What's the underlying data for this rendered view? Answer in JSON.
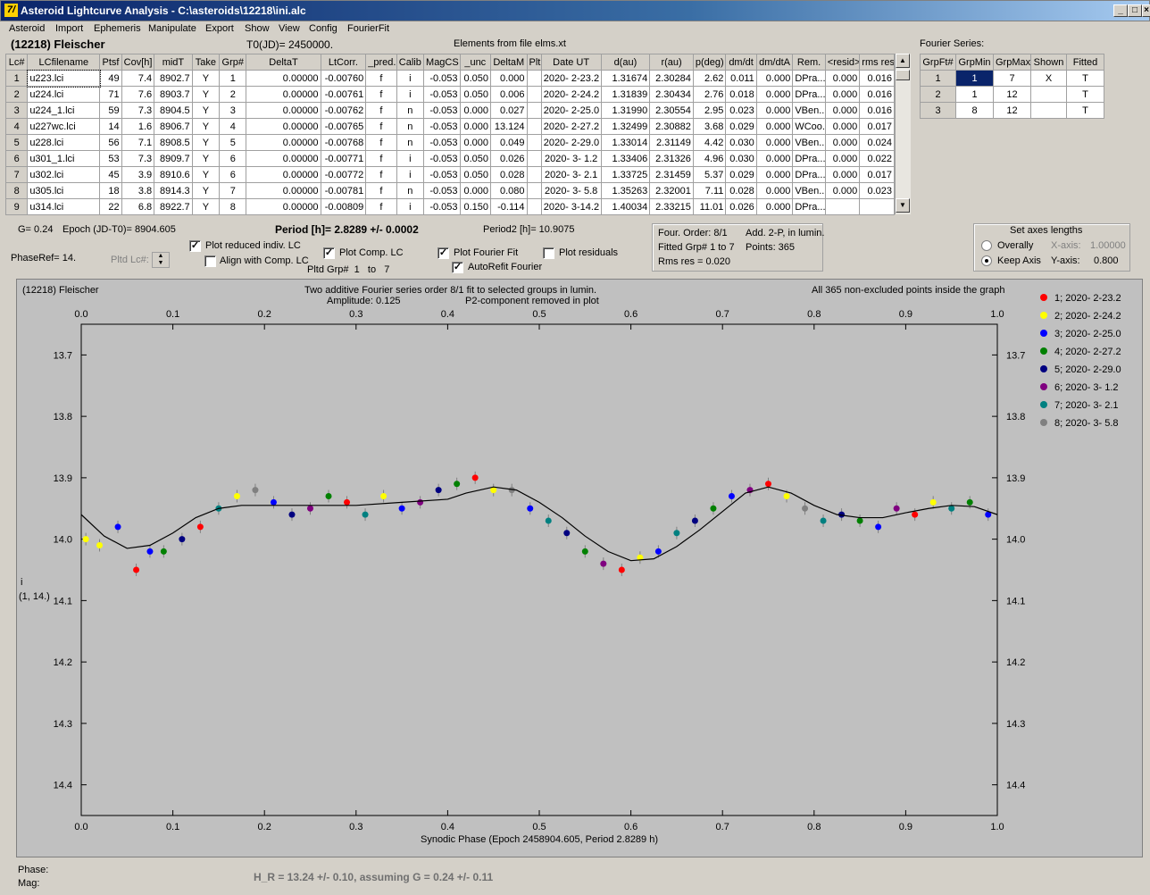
{
  "window": {
    "title": "Asteroid Lightcurve Analysis - C:\\asteroids\\12218\\ini.alc",
    "icon_text": "7/"
  },
  "menu": [
    "Asteroid",
    "Import",
    "Ephemeris",
    "Manipulate",
    "Export",
    "Show",
    "View",
    "Config",
    "FourierFit"
  ],
  "header": {
    "asteroid": "(12218) Fleischer",
    "t0": "T0(JD)= 2450000.",
    "elements": "Elements from file elms.xt",
    "fourier_series_label": "Fourier Series:"
  },
  "lc_table": {
    "columns": [
      "Lc#",
      "LCfilename",
      "Ptsf",
      "Cov[h]",
      "midT",
      "Take",
      "Grp#",
      "DeltaT",
      "LtCorr.",
      "_pred.",
      "Calib",
      "MagCS",
      "_unc",
      "DeltaM",
      "Plt",
      "Date UT",
      "d(au)",
      "r(au)",
      "p(deg)",
      "dm/dt",
      "dm/dtA",
      "Rem.",
      "<resid>",
      "rms res"
    ],
    "rows": [
      [
        "1",
        "u223.lci",
        "49",
        "7.4",
        "8902.7",
        "Y",
        "1",
        "0.00000",
        "-0.00760",
        "f",
        "i",
        "-0.053",
        "0.050",
        "0.000",
        "",
        "2020- 2-23.2",
        "1.31674",
        "2.30284",
        "2.62",
        "0.011",
        "0.000",
        "DPra...",
        "0.000",
        "0.016"
      ],
      [
        "2",
        "u224.lci",
        "71",
        "7.6",
        "8903.7",
        "Y",
        "2",
        "0.00000",
        "-0.00761",
        "f",
        "i",
        "-0.053",
        "0.050",
        "0.006",
        "",
        "2020- 2-24.2",
        "1.31839",
        "2.30434",
        "2.76",
        "0.018",
        "0.000",
        "DPra...",
        "0.000",
        "0.016"
      ],
      [
        "3",
        "u224_1.lci",
        "59",
        "7.3",
        "8904.5",
        "Y",
        "3",
        "0.00000",
        "-0.00762",
        "f",
        "n",
        "-0.053",
        "0.000",
        "0.027",
        "",
        "2020- 2-25.0",
        "1.31990",
        "2.30554",
        "2.95",
        "0.023",
        "0.000",
        "VBen...",
        "0.000",
        "0.016"
      ],
      [
        "4",
        "u227wc.lci",
        "14",
        "1.6",
        "8906.7",
        "Y",
        "4",
        "0.00000",
        "-0.00765",
        "f",
        "n",
        "-0.053",
        "0.000",
        "13.124",
        "",
        "2020- 2-27.2",
        "1.32499",
        "2.30882",
        "3.68",
        "0.029",
        "0.000",
        "WCoo...",
        "0.000",
        "0.017"
      ],
      [
        "5",
        "u228.lci",
        "56",
        "7.1",
        "8908.5",
        "Y",
        "5",
        "0.00000",
        "-0.00768",
        "f",
        "n",
        "-0.053",
        "0.000",
        "0.049",
        "",
        "2020- 2-29.0",
        "1.33014",
        "2.31149",
        "4.42",
        "0.030",
        "0.000",
        "VBen...",
        "0.000",
        "0.024"
      ],
      [
        "6",
        "u301_1.lci",
        "53",
        "7.3",
        "8909.7",
        "Y",
        "6",
        "0.00000",
        "-0.00771",
        "f",
        "i",
        "-0.053",
        "0.050",
        "0.026",
        "",
        "2020- 3- 1.2",
        "1.33406",
        "2.31326",
        "4.96",
        "0.030",
        "0.000",
        "DPra...",
        "0.000",
        "0.022"
      ],
      [
        "7",
        "u302.lci",
        "45",
        "3.9",
        "8910.6",
        "Y",
        "6",
        "0.00000",
        "-0.00772",
        "f",
        "i",
        "-0.053",
        "0.050",
        "0.028",
        "",
        "2020- 3- 2.1",
        "1.33725",
        "2.31459",
        "5.37",
        "0.029",
        "0.000",
        "DPra...",
        "0.000",
        "0.017"
      ],
      [
        "8",
        "u305.lci",
        "18",
        "3.8",
        "8914.3",
        "Y",
        "7",
        "0.00000",
        "-0.00781",
        "f",
        "n",
        "-0.053",
        "0.000",
        "0.080",
        "",
        "2020- 3- 5.8",
        "1.35263",
        "2.32001",
        "7.11",
        "0.028",
        "0.000",
        "VBen...",
        "0.000",
        "0.023"
      ],
      [
        "9",
        "u314.lci",
        "22",
        "6.8",
        "8922.7",
        "Y",
        "8",
        "0.00000",
        "-0.00809",
        "f",
        "i",
        "-0.053",
        "0.150",
        "-0.114",
        "",
        "2020- 3-14.2",
        "1.40034",
        "2.33215",
        "11.01",
        "0.026",
        "0.000",
        "DPra...",
        "",
        ""
      ]
    ]
  },
  "fourier_table": {
    "columns": [
      "GrpFt#",
      "GrpMin",
      "GrpMax",
      "Shown",
      "Fitted"
    ],
    "rows": [
      [
        "1",
        "1",
        "7",
        "X",
        "T"
      ],
      [
        "2",
        "1",
        "12",
        "",
        "T"
      ],
      [
        "3",
        "8",
        "12",
        "",
        "T"
      ]
    ]
  },
  "controls": {
    "g": "G= 0.24",
    "epoch": "Epoch (JD-T0)= 8904.605",
    "period": "Period [h]= 2.8289 +/- 0.0002",
    "period2": "Period2 [h]= 10.9075",
    "phaseref": "PhaseRef= 14.",
    "pltd_lc": "Pltd Lc#:",
    "plot_reduced": "Plot reduced indiv. LC",
    "align_comp": "Align with Comp. LC",
    "plot_comp": "Plot Comp. LC",
    "pltd_grp": "Pltd Grp#",
    "pltd_grp_from": "1",
    "pltd_grp_to_label": "to",
    "pltd_grp_to": "7",
    "plot_fourier": "Plot Fourier Fit",
    "autorefit": "AutoRefit Fourier",
    "plot_residuals": "Plot residuals",
    "plot_reduced_checked": true,
    "align_comp_checked": false,
    "plot_comp_checked": true,
    "plot_fourier_checked": true,
    "autorefit_checked": true,
    "plot_residuals_checked": false
  },
  "fourier_info": {
    "order": "Four. Order:  8/1",
    "add": "Add. 2-P, in lumin.",
    "fitted": "Fitted Grp# 1 to 7",
    "points": "Points: 365",
    "rms": "Rms res     = 0.020"
  },
  "axes_box": {
    "title": "Set axes lengths",
    "overall": "Overally",
    "keep": "Keep Axis",
    "xaxis_label": "X-axis:",
    "xaxis_value": "1.00000",
    "yaxis_label": "Y-axis:",
    "yaxis_value": "0.800",
    "selected": "keep"
  },
  "plot_header": {
    "name": "(12218) Fleischer",
    "line1": "Two additive Fourier series order 8/1 fit to selected groups in lumin.",
    "amplitude": "Amplitude: 0.125",
    "p2": "P2-component removed in plot",
    "points_note": "All 365 non-excluded points inside the graph"
  },
  "status": {
    "phase": "Phase:",
    "mag": "Mag:",
    "hr": "H_R = 13.24 +/- 0.10, assuming G = 0.24 +/- 0.11"
  },
  "chart_data": {
    "type": "scatter",
    "xlabel": "Synodic Phase (Epoch 2458904.605, Period 2.8289 h)",
    "ylabel": "i",
    "ylabel2": "(1, 14.)",
    "xlim": [
      0.0,
      1.0
    ],
    "ylim": [
      14.45,
      13.65
    ],
    "x_ticks": [
      "0.0",
      "0.1",
      "0.2",
      "0.3",
      "0.4",
      "0.5",
      "0.6",
      "0.7",
      "0.8",
      "0.9",
      "1.0"
    ],
    "y_ticks": [
      "13.7",
      "13.8",
      "13.9",
      "14.0",
      "14.1",
      "14.2",
      "14.3",
      "14.4"
    ],
    "y_tick_values": [
      13.7,
      13.8,
      13.9,
      14.0,
      14.1,
      14.2,
      14.3,
      14.4
    ],
    "fit_curve": {
      "x": [
        0.0,
        0.025,
        0.05,
        0.075,
        0.1,
        0.125,
        0.15,
        0.175,
        0.2,
        0.25,
        0.3,
        0.35,
        0.4,
        0.42,
        0.45,
        0.475,
        0.5,
        0.525,
        0.55,
        0.575,
        0.6,
        0.625,
        0.65,
        0.675,
        0.7,
        0.725,
        0.75,
        0.775,
        0.8,
        0.825,
        0.85,
        0.875,
        0.9,
        0.925,
        0.95,
        0.975,
        1.0
      ],
      "y": [
        13.96,
        13.995,
        14.015,
        14.01,
        13.99,
        13.965,
        13.95,
        13.945,
        13.945,
        13.945,
        13.945,
        13.94,
        13.935,
        13.925,
        13.915,
        13.92,
        13.94,
        13.965,
        13.995,
        14.02,
        14.035,
        14.032,
        14.012,
        13.985,
        13.955,
        13.925,
        13.915,
        13.925,
        13.945,
        13.96,
        13.965,
        13.965,
        13.957,
        13.95,
        13.945,
        13.947,
        13.96
      ]
    },
    "series": [
      {
        "name": "1; 2020- 2-23.2",
        "color": "#ff0000"
      },
      {
        "name": "2; 2020- 2-24.2",
        "color": "#ffff00"
      },
      {
        "name": "3; 2020- 2-25.0",
        "color": "#0000ff"
      },
      {
        "name": "4; 2020- 2-27.2",
        "color": "#008000"
      },
      {
        "name": "5; 2020- 2-29.0",
        "color": "#000080"
      },
      {
        "name": "6; 2020- 3- 1.2",
        "color": "#800080"
      },
      {
        "name": "7; 2020- 3- 2.1",
        "color": "#008080"
      },
      {
        "name": "8; 2020- 3- 5.8",
        "color": "#808080"
      }
    ],
    "points": [
      [
        0.005,
        14.0,
        1
      ],
      [
        0.02,
        14.01,
        1
      ],
      [
        0.04,
        13.98,
        2
      ],
      [
        0.06,
        14.05,
        0
      ],
      [
        0.075,
        14.02,
        2
      ],
      [
        0.09,
        14.02,
        3
      ],
      [
        0.11,
        14.0,
        4
      ],
      [
        0.13,
        13.98,
        0
      ],
      [
        0.15,
        13.95,
        6
      ],
      [
        0.17,
        13.93,
        1
      ],
      [
        0.19,
        13.92,
        7
      ],
      [
        0.21,
        13.94,
        2
      ],
      [
        0.23,
        13.96,
        4
      ],
      [
        0.25,
        13.95,
        5
      ],
      [
        0.27,
        13.93,
        3
      ],
      [
        0.29,
        13.94,
        0
      ],
      [
        0.31,
        13.96,
        6
      ],
      [
        0.33,
        13.93,
        1
      ],
      [
        0.35,
        13.95,
        2
      ],
      [
        0.37,
        13.94,
        5
      ],
      [
        0.39,
        13.92,
        4
      ],
      [
        0.41,
        13.91,
        3
      ],
      [
        0.43,
        13.9,
        0
      ],
      [
        0.45,
        13.92,
        1
      ],
      [
        0.47,
        13.92,
        7
      ],
      [
        0.49,
        13.95,
        2
      ],
      [
        0.51,
        13.97,
        6
      ],
      [
        0.53,
        13.99,
        4
      ],
      [
        0.55,
        14.02,
        3
      ],
      [
        0.57,
        14.04,
        5
      ],
      [
        0.59,
        14.05,
        0
      ],
      [
        0.61,
        14.03,
        1
      ],
      [
        0.63,
        14.02,
        2
      ],
      [
        0.65,
        13.99,
        6
      ],
      [
        0.67,
        13.97,
        4
      ],
      [
        0.69,
        13.95,
        3
      ],
      [
        0.71,
        13.93,
        2
      ],
      [
        0.73,
        13.92,
        5
      ],
      [
        0.75,
        13.91,
        0
      ],
      [
        0.77,
        13.93,
        1
      ],
      [
        0.79,
        13.95,
        7
      ],
      [
        0.81,
        13.97,
        6
      ],
      [
        0.83,
        13.96,
        4
      ],
      [
        0.85,
        13.97,
        3
      ],
      [
        0.87,
        13.98,
        2
      ],
      [
        0.89,
        13.95,
        5
      ],
      [
        0.91,
        13.96,
        0
      ],
      [
        0.93,
        13.94,
        1
      ],
      [
        0.95,
        13.95,
        6
      ],
      [
        0.97,
        13.94,
        3
      ],
      [
        0.99,
        13.96,
        2
      ]
    ]
  }
}
